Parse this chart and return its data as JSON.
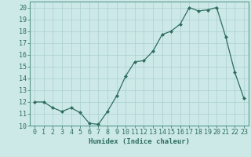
{
  "x": [
    0,
    1,
    2,
    3,
    4,
    5,
    6,
    7,
    8,
    9,
    10,
    11,
    12,
    13,
    14,
    15,
    16,
    17,
    18,
    19,
    20,
    21,
    22,
    23
  ],
  "y": [
    12,
    12,
    11.5,
    11.2,
    11.5,
    11.1,
    10.2,
    10.1,
    11.2,
    12.5,
    14.2,
    15.4,
    15.5,
    16.3,
    17.7,
    18.0,
    18.6,
    20.0,
    19.7,
    19.8,
    20.0,
    17.5,
    14.5,
    12.3
  ],
  "line_color": "#2e6e5e",
  "marker": "D",
  "markersize": 2.0,
  "linewidth": 0.9,
  "bg_color": "#cce9e8",
  "grid_color": "#aacfcf",
  "xlabel": "Humidex (Indice chaleur)",
  "xlim": [
    -0.5,
    23.5
  ],
  "ylim": [
    10,
    20.5
  ],
  "yticks": [
    10,
    11,
    12,
    13,
    14,
    15,
    16,
    17,
    18,
    19,
    20
  ],
  "xticks": [
    0,
    1,
    2,
    3,
    4,
    5,
    6,
    7,
    8,
    9,
    10,
    11,
    12,
    13,
    14,
    15,
    16,
    17,
    18,
    19,
    20,
    21,
    22,
    23
  ],
  "xlabel_fontsize": 6.5,
  "tick_fontsize": 6,
  "tick_color": "#2e6e5e",
  "axis_color": "#2e6e5e",
  "spine_color": "#5a9a8a"
}
